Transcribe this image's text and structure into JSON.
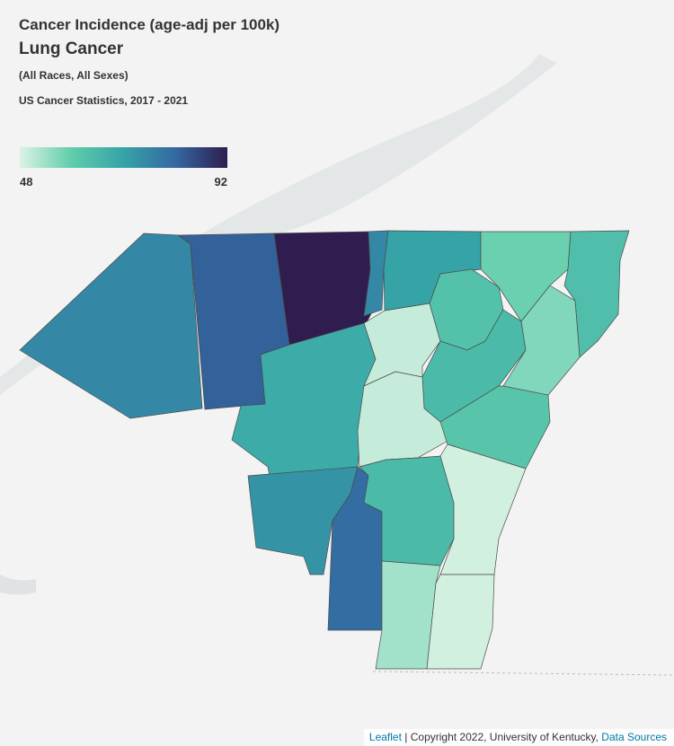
{
  "map": {
    "title": "Cancer Incidence (age-adj per 100k)",
    "subtitle": "Lung Cancer",
    "population": "(All Races, All Sexes)",
    "source": "US Cancer Statistics, 2017 - 2021",
    "legend": {
      "min": 48,
      "max": 92,
      "colors": [
        "#dcf3e4",
        "#5fcdab",
        "#36a3a7",
        "#3468a2",
        "#2e1d4e"
      ]
    },
    "regions": [
      {
        "value": 75
      },
      {
        "value": 82
      },
      {
        "value": 92
      },
      {
        "value": 75
      },
      {
        "value": 70
      },
      {
        "value": 58
      },
      {
        "value": 63
      },
      {
        "value": 68
      },
      {
        "value": 50
      },
      {
        "value": 62
      },
      {
        "value": 64
      },
      {
        "value": 56
      },
      {
        "value": 50
      },
      {
        "value": 61
      },
      {
        "value": 73
      },
      {
        "value": 80
      },
      {
        "value": 64
      },
      {
        "value": 49
      },
      {
        "value": 53
      },
      {
        "value": 49
      }
    ],
    "attribution": {
      "leaflet": "Leaflet",
      "copyright": "| Copyright 2022, University of Kentucky,",
      "sources": "Data Sources"
    }
  }
}
